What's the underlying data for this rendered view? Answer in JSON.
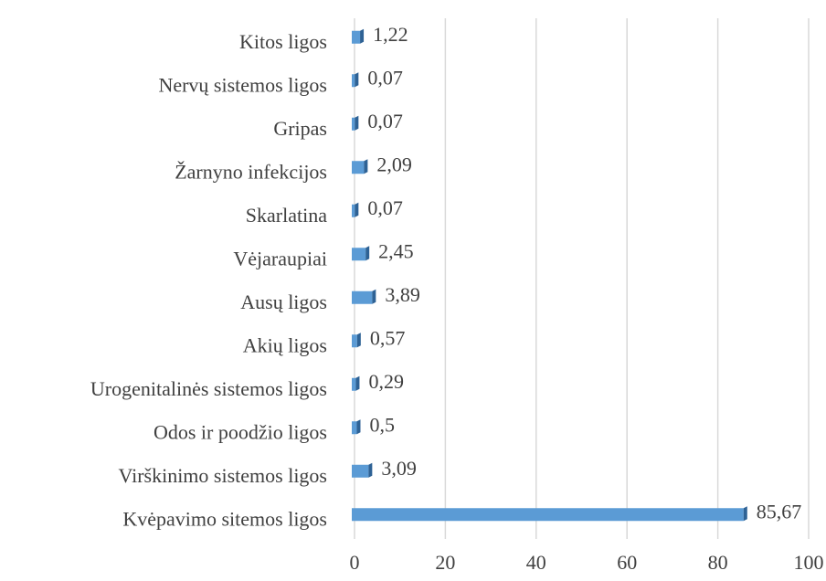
{
  "chart_data": {
    "type": "hbar",
    "categories": [
      "Kvėpavimo sitemos ligos",
      "Virškinimo sistemos ligos",
      "Odos ir poodžio ligos",
      "Urogenitalinės sistemos ligos",
      "Akių ligos",
      "Ausų ligos",
      "Vėjaraupiai",
      "Skarlatina",
      "Žarnyno infekcijos",
      "Gripas",
      "Nervų sistemos ligos",
      "Kitos ligos"
    ],
    "values": [
      85.67,
      3.09,
      0.5,
      0.29,
      0.57,
      3.89,
      2.45,
      0.07,
      2.09,
      0.07,
      0.07,
      1.22
    ],
    "value_labels": [
      "85,67",
      "3,09",
      "0,5",
      "0,29",
      "0,57",
      "3,89",
      "2,45",
      "0,07",
      "2,09",
      "0,07",
      "0,07",
      "1,22"
    ],
    "color": "#5b9bd5",
    "xlim": [
      0,
      100
    ],
    "xticks": [
      0,
      20,
      40,
      60,
      80,
      100
    ],
    "grid": true
  }
}
